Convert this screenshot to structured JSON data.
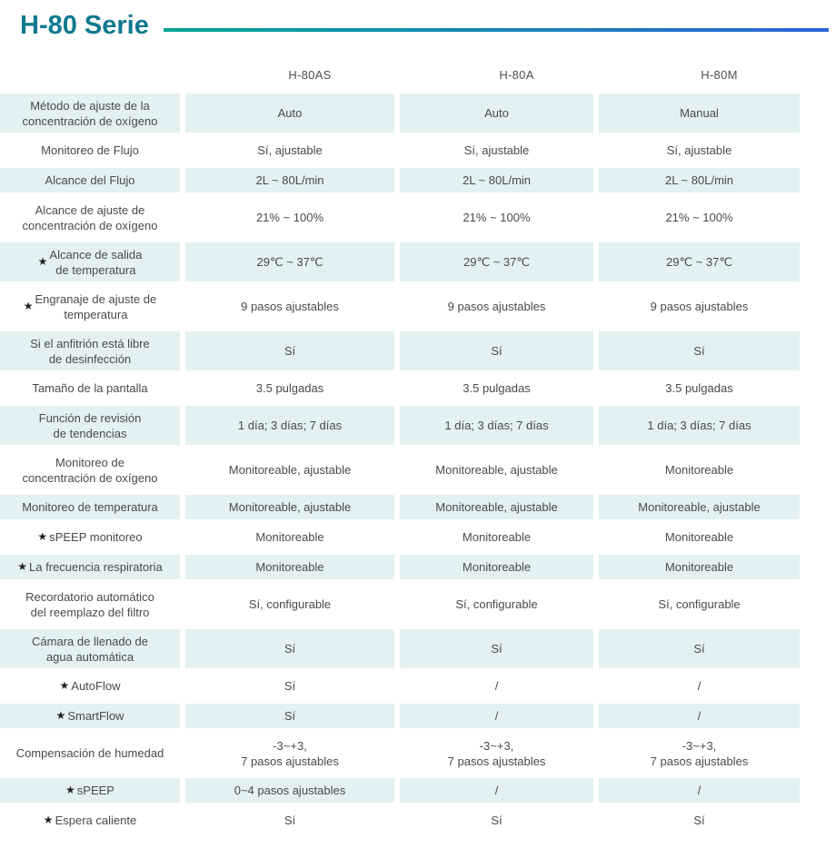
{
  "page": {
    "title": "H-80 Serie"
  },
  "colors": {
    "title": "#0e7a8e",
    "rule_gradient_start": "#00a693",
    "rule_gradient_end": "#2b63d8",
    "row_shade": "#e3f1f1",
    "text": "#4a4a4a"
  },
  "table": {
    "star_glyph": "★",
    "columns": [
      "H-80AS",
      "H-80A",
      "H-80M"
    ],
    "rows": [
      {
        "label": "Método de ajuste de la\nconcentración de oxígeno",
        "starred": false,
        "shaded": true,
        "tall": true,
        "values": [
          "Auto",
          "Auto",
          "Manual"
        ]
      },
      {
        "label": "Monitoreo de Flujo",
        "starred": false,
        "shaded": false,
        "tall": false,
        "values": [
          "Sí, ajustable",
          "Sí, ajustable",
          "Sí, ajustable"
        ]
      },
      {
        "label": "Alcance del Flujo",
        "starred": false,
        "shaded": true,
        "tall": false,
        "values": [
          "2L ~ 80L/min",
          "2L ~ 80L/min",
          "2L ~ 80L/min"
        ]
      },
      {
        "label": "Alcance de ajuste de\nconcentración de oxígeno",
        "starred": false,
        "shaded": false,
        "tall": true,
        "values": [
          "21% ~ 100%",
          "21% ~ 100%",
          "21% ~ 100%"
        ]
      },
      {
        "label": "Alcance de salida\nde temperatura",
        "starred": true,
        "shaded": true,
        "tall": true,
        "values": [
          "29℃ ~ 37℃",
          "29℃ ~ 37℃",
          "29℃ ~ 37℃"
        ]
      },
      {
        "label": "Engranaje de ajuste de\ntemperatura",
        "starred": true,
        "shaded": false,
        "tall": true,
        "values": [
          "9 pasos ajustables",
          "9 pasos ajustables",
          "9 pasos ajustables"
        ]
      },
      {
        "label": "Si el anfitrión está libre\nde desinfección",
        "starred": false,
        "shaded": true,
        "tall": true,
        "values": [
          "Sí",
          "Sí",
          "Sí"
        ]
      },
      {
        "label": "Tamaño de la pantalla",
        "starred": false,
        "shaded": false,
        "tall": false,
        "values": [
          "3.5 pulgadas",
          "3.5 pulgadas",
          "3.5 pulgadas"
        ]
      },
      {
        "label": "Función de revisión\nde tendencias",
        "starred": false,
        "shaded": true,
        "tall": true,
        "values": [
          "1 día; 3 días; 7 días",
          "1 día; 3 días; 7 días",
          "1 día; 3 días; 7 días"
        ]
      },
      {
        "label": "Monitoreo de\nconcentración de oxígeno",
        "starred": false,
        "shaded": false,
        "tall": true,
        "values": [
          "Monitoreable, ajustable",
          "Monitoreable, ajustable",
          "Monitoreable"
        ]
      },
      {
        "label": "Monitoreo de temperatura",
        "starred": false,
        "shaded": true,
        "tall": false,
        "values": [
          "Monitoreable, ajustable",
          "Monitoreable, ajustable",
          "Monitoreable, ajustable"
        ]
      },
      {
        "label": "sPEEP monitoreo",
        "starred": true,
        "shaded": false,
        "tall": false,
        "values": [
          "Monitoreable",
          "Monitoreable",
          "Monitoreable"
        ]
      },
      {
        "label": "La frecuencia respiratoria",
        "starred": true,
        "shaded": true,
        "tall": false,
        "values": [
          "Monitoreable",
          "Monitoreable",
          "Monitoreable"
        ]
      },
      {
        "label": "Recordatorio automático\ndel reemplazo del filtro",
        "starred": false,
        "shaded": false,
        "tall": true,
        "values": [
          "Sí, configurable",
          "Sí, configurable",
          "Sí, configurable"
        ]
      },
      {
        "label": "Cámara de llenado de\nagua automática",
        "starred": false,
        "shaded": true,
        "tall": true,
        "values": [
          "Sí",
          "Sí",
          "Sí"
        ]
      },
      {
        "label": "AutoFlow",
        "starred": true,
        "shaded": false,
        "tall": false,
        "values": [
          "Sí",
          "/",
          "/"
        ]
      },
      {
        "label": "SmartFlow",
        "starred": true,
        "shaded": true,
        "tall": false,
        "values": [
          "Sí",
          "/",
          "/"
        ]
      },
      {
        "label": "Compensación de humedad",
        "starred": false,
        "shaded": false,
        "tall": true,
        "values": [
          "-3~+3,\n7 pasos ajustables",
          "-3~+3,\n7 pasos ajustables",
          "-3~+3,\n7 pasos ajustables"
        ]
      },
      {
        "label": "sPEEP",
        "starred": true,
        "shaded": true,
        "tall": false,
        "values": [
          "0~4 pasos ajustables",
          "/",
          "/"
        ]
      },
      {
        "label": "Espera caliente",
        "starred": true,
        "shaded": false,
        "tall": false,
        "values": [
          "Sí",
          "Sí",
          "Sí"
        ]
      }
    ]
  }
}
